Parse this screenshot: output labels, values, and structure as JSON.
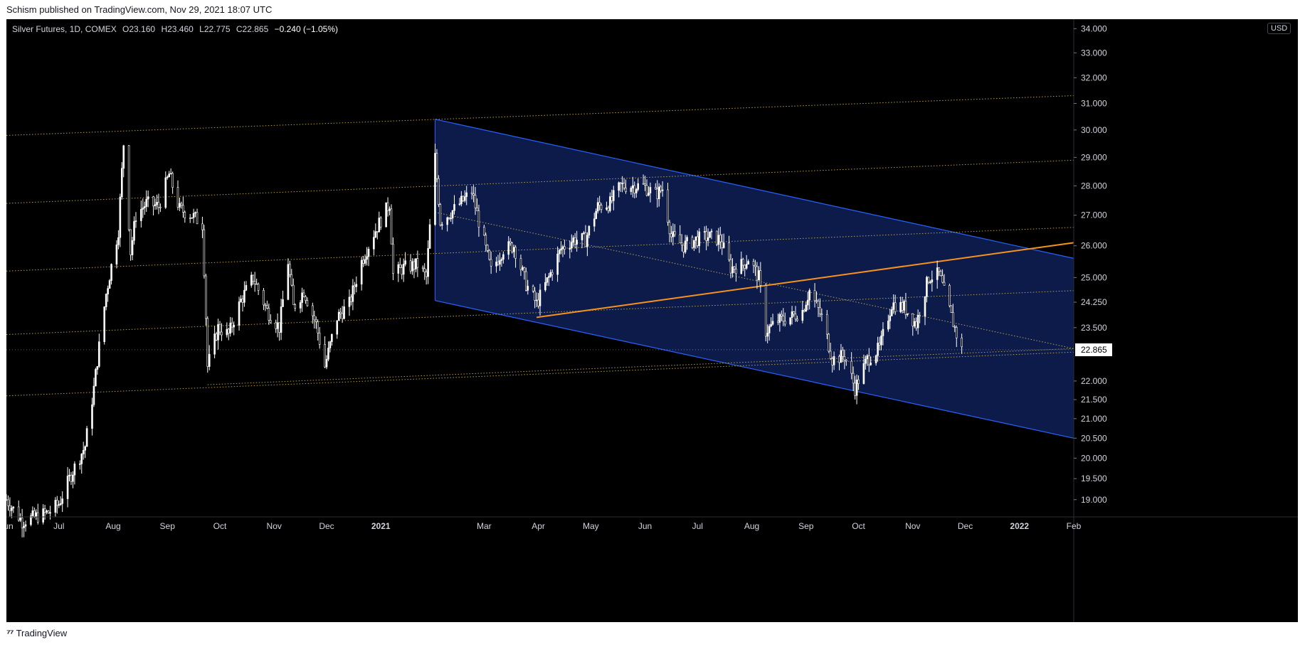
{
  "header": {
    "published": "Schism published on TradingView.com, Nov 29, 2021 18:07 UTC"
  },
  "legend": {
    "symbol": "Silver Futures, 1D, COMEX",
    "open": "O23.160",
    "high": "H23.460",
    "low": "L22.775",
    "close": "C22.865",
    "change": "−0.240 (−1.05%)"
  },
  "currency": "USD",
  "footer": {
    "brand": "TradingView"
  },
  "colors": {
    "background": "#000000",
    "candle": "#ffffff",
    "channel_fill": "#0d1b4a",
    "channel_line": "#2962ff",
    "trend_line": "#f7931a",
    "fib_line": "#d4b94a"
  },
  "chart_data": {
    "type": "candlestick",
    "symbol": "Silver Futures",
    "interval": "1D",
    "exchange": "COMEX",
    "x_range": [
      "2020-06-01",
      "2022-02-01"
    ],
    "y_range": [
      18.6,
      34.4
    ],
    "y_scale": "log",
    "y_ticks": [
      34.0,
      33.0,
      32.0,
      31.0,
      30.0,
      29.0,
      28.0,
      27.0,
      26.0,
      25.0,
      24.25,
      23.5,
      22.0,
      21.5,
      21.0,
      20.5,
      20.0,
      19.5,
      19.0
    ],
    "y_tick_labels": [
      "34.000",
      "33.000",
      "32.000",
      "31.000",
      "30.000",
      "29.000",
      "28.000",
      "27.000",
      "26.000",
      "25.000",
      "24.250",
      "23.500",
      "22.000",
      "21.500",
      "21.000",
      "20.500",
      "20.000",
      "19.500",
      "19.000"
    ],
    "x_ticks": [
      {
        "label": "Jun",
        "date": "2020-06-01"
      },
      {
        "label": "Jul",
        "date": "2020-07-01"
      },
      {
        "label": "Aug",
        "date": "2020-08-01"
      },
      {
        "label": "Sep",
        "date": "2020-09-01"
      },
      {
        "label": "Oct",
        "date": "2020-10-01"
      },
      {
        "label": "Nov",
        "date": "2020-11-01"
      },
      {
        "label": "Dec",
        "date": "2020-12-01"
      },
      {
        "label": "2021",
        "date": "2021-01-01"
      },
      {
        "label": "Mar",
        "date": "2021-03-01"
      },
      {
        "label": "Apr",
        "date": "2021-04-01"
      },
      {
        "label": "May",
        "date": "2021-05-01"
      },
      {
        "label": "Jun",
        "date": "2021-06-01"
      },
      {
        "label": "Jul",
        "date": "2021-07-01"
      },
      {
        "label": "Aug",
        "date": "2021-08-01"
      },
      {
        "label": "Sep",
        "date": "2021-09-01"
      },
      {
        "label": "Oct",
        "date": "2021-10-01"
      },
      {
        "label": "Nov",
        "date": "2021-11-01"
      },
      {
        "label": "Dec",
        "date": "2021-12-01"
      },
      {
        "label": "2022",
        "date": "2022-01-01"
      },
      {
        "label": "Feb",
        "date": "2022-02-01"
      }
    ],
    "last_price": 22.865,
    "last_price_label": "22.865",
    "price_path": [
      [
        "2020-06-01",
        19.0
      ],
      [
        "2020-06-10",
        18.5
      ],
      [
        "2020-06-25",
        18.7
      ],
      [
        "2020-07-01",
        18.9
      ],
      [
        "2020-07-08",
        19.6
      ],
      [
        "2020-07-16",
        20.3
      ],
      [
        "2020-07-21",
        21.8
      ],
      [
        "2020-07-28",
        24.5
      ],
      [
        "2020-08-04",
        26.5
      ],
      [
        "2020-08-07",
        29.5
      ],
      [
        "2020-08-11",
        25.8
      ],
      [
        "2020-08-14",
        27.0
      ],
      [
        "2020-08-20",
        27.4
      ],
      [
        "2020-08-27",
        27.3
      ],
      [
        "2020-09-02",
        28.4
      ],
      [
        "2020-09-08",
        27.2
      ],
      [
        "2020-09-15",
        27.0
      ],
      [
        "2020-09-21",
        26.7
      ],
      [
        "2020-09-24",
        22.4
      ],
      [
        "2020-09-30",
        23.5
      ],
      [
        "2020-10-06",
        23.3
      ],
      [
        "2020-10-13",
        24.3
      ],
      [
        "2020-10-20",
        25.0
      ],
      [
        "2020-10-28",
        24.0
      ],
      [
        "2020-11-04",
        23.5
      ],
      [
        "2020-11-09",
        25.5
      ],
      [
        "2020-11-12",
        24.1
      ],
      [
        "2020-11-18",
        24.6
      ],
      [
        "2020-11-25",
        23.6
      ],
      [
        "2020-11-30",
        22.4
      ],
      [
        "2020-12-07",
        23.8
      ],
      [
        "2020-12-14",
        24.2
      ],
      [
        "2020-12-21",
        25.5
      ],
      [
        "2020-12-28",
        26.4
      ],
      [
        "2021-01-06",
        27.4
      ],
      [
        "2021-01-08",
        25.1
      ],
      [
        "2021-01-14",
        25.3
      ],
      [
        "2021-01-22",
        25.4
      ],
      [
        "2021-01-27",
        25.0
      ],
      [
        "2021-02-01",
        29.0
      ],
      [
        "2021-02-04",
        26.8
      ],
      [
        "2021-02-12",
        27.2
      ],
      [
        "2021-02-22",
        27.8
      ],
      [
        "2021-02-26",
        26.8
      ],
      [
        "2021-03-05",
        25.2
      ],
      [
        "2021-03-12",
        25.9
      ],
      [
        "2021-03-18",
        26.0
      ],
      [
        "2021-03-25",
        24.8
      ],
      [
        "2021-03-31",
        24.2
      ],
      [
        "2021-04-07",
        25.0
      ],
      [
        "2021-04-14",
        25.9
      ],
      [
        "2021-04-21",
        26.2
      ],
      [
        "2021-04-28",
        26.2
      ],
      [
        "2021-05-05",
        27.3
      ],
      [
        "2021-05-12",
        27.4
      ],
      [
        "2021-05-18",
        28.0
      ],
      [
        "2021-05-24",
        28.0
      ],
      [
        "2021-05-31",
        28.0
      ],
      [
        "2021-06-07",
        27.7
      ],
      [
        "2021-06-11",
        27.9
      ],
      [
        "2021-06-16",
        26.3
      ],
      [
        "2021-06-23",
        26.0
      ],
      [
        "2021-06-30",
        26.2
      ],
      [
        "2021-07-07",
        26.3
      ],
      [
        "2021-07-14",
        26.2
      ],
      [
        "2021-07-20",
        25.3
      ],
      [
        "2021-07-27",
        25.4
      ],
      [
        "2021-07-30",
        25.6
      ],
      [
        "2021-08-05",
        25.0
      ],
      [
        "2021-08-09",
        23.4
      ],
      [
        "2021-08-16",
        23.7
      ],
      [
        "2021-08-23",
        23.8
      ],
      [
        "2021-08-30",
        24.0
      ],
      [
        "2021-09-03",
        24.6
      ],
      [
        "2021-09-10",
        23.8
      ],
      [
        "2021-09-16",
        22.6
      ],
      [
        "2021-09-23",
        22.7
      ],
      [
        "2021-09-29",
        21.8
      ],
      [
        "2021-10-06",
        22.6
      ],
      [
        "2021-10-13",
        22.9
      ],
      [
        "2021-10-20",
        24.2
      ],
      [
        "2021-10-27",
        24.1
      ],
      [
        "2021-11-03",
        23.6
      ],
      [
        "2021-11-10",
        25.0
      ],
      [
        "2021-11-16",
        25.1
      ],
      [
        "2021-11-22",
        24.0
      ],
      [
        "2021-11-26",
        23.3
      ],
      [
        "2021-11-29",
        22.865
      ]
    ],
    "channel": {
      "upper": [
        [
          "2021-02-01",
          30.4
        ],
        [
          "2022-02-01",
          25.6
        ]
      ],
      "lower": [
        [
          "2021-02-01",
          24.3
        ],
        [
          "2022-02-01",
          20.5
        ]
      ]
    },
    "trend_line": [
      [
        "2021-03-31",
        23.8
      ],
      [
        "2022-02-01",
        26.1
      ]
    ],
    "dotted_lines": [
      [
        [
          "2020-06-01",
          29.8
        ],
        [
          "2022-02-01",
          31.3
        ]
      ],
      [
        [
          "2020-06-01",
          27.4
        ],
        [
          "2022-02-01",
          28.9
        ]
      ],
      [
        [
          "2020-06-01",
          25.2
        ],
        [
          "2022-02-01",
          26.6
        ]
      ],
      [
        [
          "2020-06-01",
          23.3
        ],
        [
          "2022-02-01",
          24.6
        ]
      ],
      [
        [
          "2020-06-01",
          21.6
        ],
        [
          "2022-02-01",
          22.8
        ]
      ],
      [
        [
          "2020-09-24",
          21.9
        ],
        [
          "2022-02-01",
          22.9
        ]
      ],
      [
        [
          "2021-02-01",
          27.1
        ],
        [
          "2022-02-01",
          22.9
        ]
      ]
    ]
  }
}
